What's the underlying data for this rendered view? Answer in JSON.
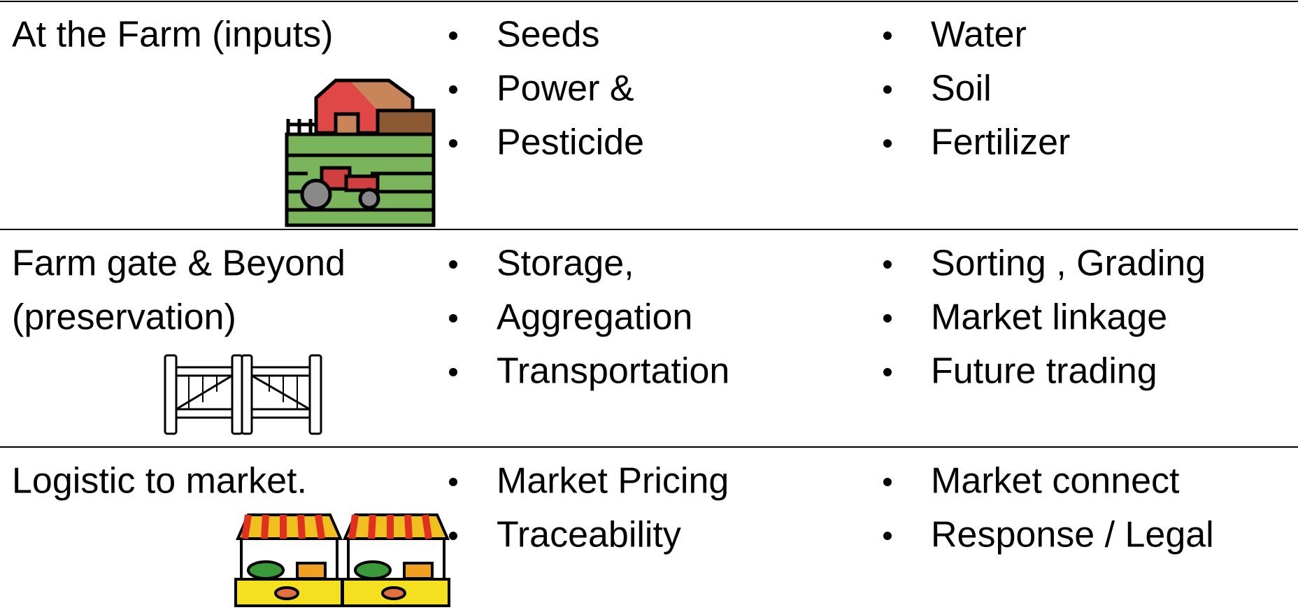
{
  "rows": [
    {
      "label": [
        "At the Farm (inputs)"
      ],
      "col1": [
        "Seeds",
        "Power &",
        "Pesticide"
      ],
      "col2": [
        "Water",
        "Soil",
        "Fertilizer"
      ]
    },
    {
      "label": [
        "Farm gate & Beyond",
        "(preservation)"
      ],
      "col1": [
        "Storage,",
        "Aggregation",
        "Transportation"
      ],
      "col2": [
        "Sorting , Grading",
        "Market linkage",
        "Future trading"
      ]
    },
    {
      "label": [
        "Logistic to market."
      ],
      "col1": [
        "Market Pricing",
        "Traceability"
      ],
      "col2": [
        "Market connect",
        "Response / Legal"
      ]
    }
  ]
}
